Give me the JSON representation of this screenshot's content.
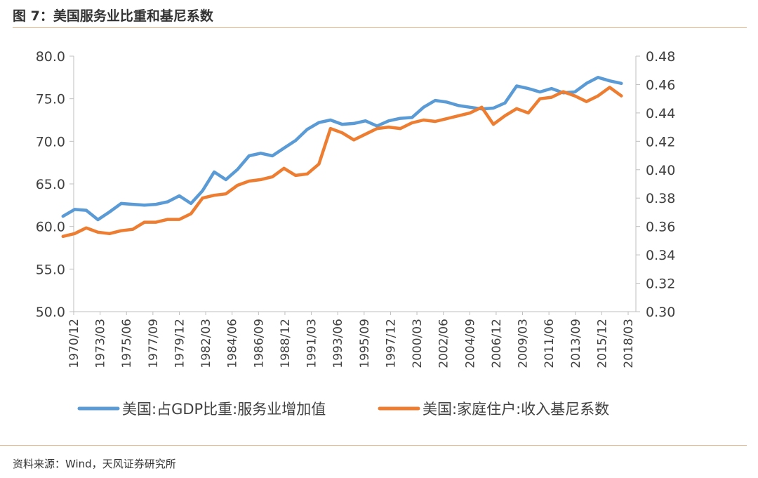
{
  "header": {
    "title": "图 7：美国服务业比重和基尼系数"
  },
  "footer": {
    "source": "资料来源：Wind，天风证券研究所"
  },
  "chart_data": {
    "type": "line",
    "title": "图 7：美国服务业比重和基尼系数",
    "categories": [
      "1970/12",
      "1973/03",
      "1975/06",
      "1977/09",
      "1979/12",
      "1982/03",
      "1984/06",
      "1986/09",
      "1988/12",
      "1991/03",
      "1993/06",
      "1995/09",
      "1997/12",
      "2000/03",
      "2002/06",
      "2004/09",
      "2006/12",
      "2009/03",
      "2011/06",
      "2013/09",
      "2015/12",
      "2018/03"
    ],
    "y_left": {
      "min": 50,
      "max": 80,
      "step": 5,
      "ticks": [
        "50.0",
        "55.0",
        "60.0",
        "65.0",
        "70.0",
        "75.0",
        "80.0"
      ]
    },
    "y_right": {
      "min": 0.3,
      "max": 0.48,
      "step": 0.02,
      "ticks": [
        "0.30",
        "0.32",
        "0.34",
        "0.36",
        "0.38",
        "0.40",
        "0.42",
        "0.44",
        "0.46",
        "0.48"
      ]
    },
    "grid": false,
    "legend_position": "bottom",
    "series": [
      {
        "name": "美国:占GDP比重:服务业增加值",
        "axis": "left",
        "color": "#5b9bd5",
        "x": [
          1970,
          1971,
          1972,
          1973,
          1974,
          1975,
          1976,
          1977,
          1978,
          1979,
          1980,
          1981,
          1982,
          1983,
          1984,
          1985,
          1986,
          1987,
          1988,
          1989,
          1990,
          1991,
          1992,
          1993,
          1994,
          1995,
          1996,
          1997,
          1998,
          1999,
          2000,
          2001,
          2002,
          2003,
          2004,
          2005,
          2006,
          2007,
          2008,
          2009,
          2010,
          2011,
          2012,
          2013,
          2014,
          2015,
          2016,
          2017,
          2018
        ],
        "values": [
          61.2,
          62.0,
          61.9,
          60.8,
          61.7,
          62.7,
          62.6,
          62.5,
          62.6,
          62.9,
          63.6,
          62.7,
          64.2,
          66.4,
          65.5,
          66.7,
          68.3,
          68.6,
          68.3,
          69.2,
          70.1,
          71.4,
          72.2,
          72.5,
          72.0,
          72.1,
          72.4,
          71.8,
          72.4,
          72.7,
          72.8,
          74.0,
          74.8,
          74.6,
          74.2,
          74.0,
          73.8,
          73.9,
          74.5,
          76.5,
          76.2,
          75.8,
          76.2,
          75.7,
          75.8,
          76.8,
          77.5,
          77.1,
          76.8
        ]
      },
      {
        "name": "美国:家庭住户:收入基尼系数",
        "axis": "right",
        "color": "#ed7d31",
        "x": [
          1970,
          1971,
          1972,
          1973,
          1974,
          1975,
          1976,
          1977,
          1978,
          1979,
          1980,
          1981,
          1982,
          1983,
          1984,
          1985,
          1986,
          1987,
          1988,
          1989,
          1990,
          1991,
          1992,
          1993,
          1994,
          1995,
          1996,
          1997,
          1998,
          1999,
          2000,
          2001,
          2002,
          2003,
          2004,
          2005,
          2006,
          2007,
          2008,
          2009,
          2010,
          2011,
          2012,
          2013,
          2014,
          2015,
          2016,
          2017,
          2018
        ],
        "values": [
          0.353,
          0.355,
          0.359,
          0.356,
          0.355,
          0.357,
          0.358,
          0.363,
          0.363,
          0.365,
          0.365,
          0.369,
          0.38,
          0.382,
          0.383,
          0.389,
          0.392,
          0.393,
          0.395,
          0.401,
          0.396,
          0.397,
          0.404,
          0.429,
          0.426,
          0.421,
          0.425,
          0.429,
          0.43,
          0.429,
          0.433,
          0.435,
          0.434,
          0.436,
          0.438,
          0.44,
          0.444,
          0.432,
          0.438,
          0.443,
          0.44,
          0.45,
          0.451,
          0.455,
          0.452,
          0.448,
          0.452,
          0.458,
          0.452
        ]
      }
    ]
  }
}
